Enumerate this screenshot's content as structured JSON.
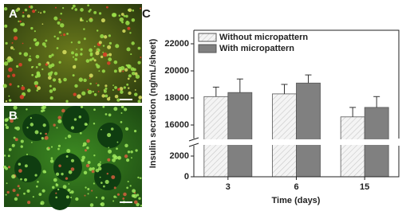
{
  "figure": {
    "panels": [
      "A",
      "B",
      "C"
    ]
  },
  "chart_data": {
    "type": "bar",
    "xlabel": "Time (days)",
    "ylabel": "Insulin secretion (ng/mL/sheet)",
    "categories": [
      "3",
      "6",
      "15"
    ],
    "series": [
      {
        "name": "Without micropattern",
        "color": "#f2f2f2",
        "hatch": true,
        "values": [
          18100,
          18300,
          16600
        ],
        "errors": [
          700,
          700,
          700
        ]
      },
      {
        "name": "With micropattern",
        "color": "#808080",
        "hatch": false,
        "values": [
          18400,
          19100,
          17300
        ],
        "errors": [
          1000,
          600,
          800
        ]
      }
    ],
    "ylim": [
      0,
      23000
    ],
    "y_break": [
      3000,
      15000
    ],
    "yticks": [
      0,
      2000,
      16000,
      18000,
      20000,
      22000
    ],
    "legend": "upper left"
  }
}
